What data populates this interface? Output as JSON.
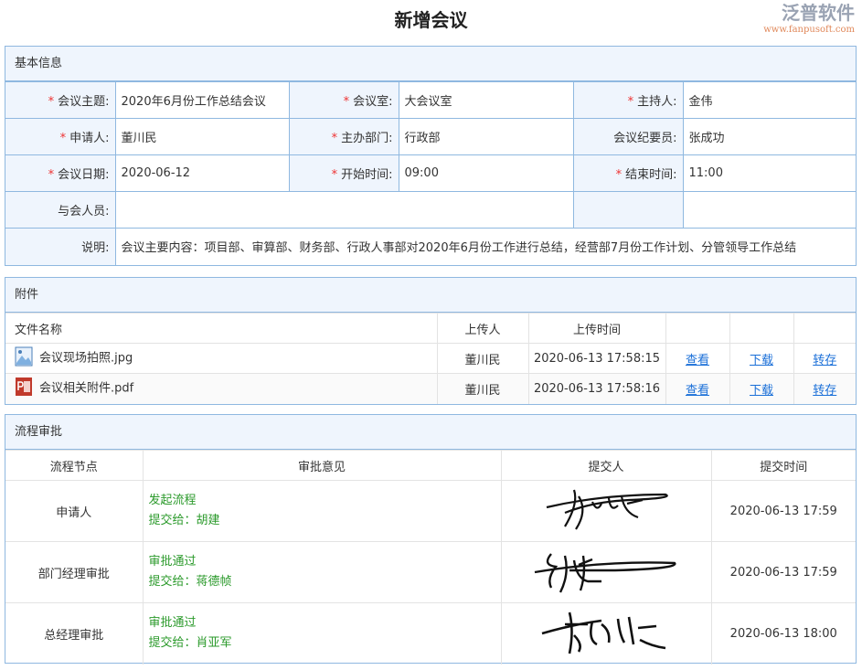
{
  "title": "新增会议",
  "basic": {
    "header": "基本信息",
    "rows": [
      [
        {
          "label": "会议主题:",
          "req": true,
          "value": "2020年6月份工作总结会议"
        },
        {
          "label": "会议室:",
          "req": true,
          "value": "大会议室"
        },
        {
          "label": "主持人:",
          "req": true,
          "value": "金伟"
        }
      ],
      [
        {
          "label": "申请人:",
          "req": true,
          "value": "董川民"
        },
        {
          "label": "主办部门:",
          "req": true,
          "value": "行政部"
        },
        {
          "label": "会议纪要员:",
          "req": false,
          "value": "张成功"
        }
      ],
      [
        {
          "label": "会议日期:",
          "req": true,
          "value": "2020-06-12"
        },
        {
          "label": "开始时间:",
          "req": true,
          "value": "09:00"
        },
        {
          "label": "结束时间:",
          "req": true,
          "value": "11:00"
        }
      ]
    ],
    "attendees_label": "与会人员:",
    "attendees": "",
    "desc_label": "说明:",
    "desc": "会议主要内容：项目部、审算部、财务部、行政人事部对2020年6月份工作进行总结，经营部7月份工作计划、分管领导工作总结"
  },
  "attachments": {
    "header": "附件",
    "cols": [
      "文件名称",
      "上传人",
      "上传时间"
    ],
    "files": [
      {
        "name": "会议现场拍照.jpg",
        "icon": "image-file-icon",
        "uploader": "董川民",
        "time": "2020-06-13 17:58:15"
      },
      {
        "name": "会议相关附件.pdf",
        "icon": "pdf-file-icon",
        "uploader": "董川民",
        "time": "2020-06-13 17:58:16"
      }
    ],
    "actions": {
      "view": "查看",
      "download": "下载",
      "save": "转存"
    }
  },
  "flow": {
    "header": "流程审批",
    "cols": [
      "流程节点",
      "审批意见",
      "提交人",
      "提交时间"
    ],
    "rows": [
      {
        "node": "申请人",
        "opinion": "发起流程",
        "to": "提交给：胡建",
        "time": "2020-06-13 17:59"
      },
      {
        "node": "部门经理审批",
        "opinion": "审批通过",
        "to": "提交给：蒋德帧",
        "time": "2020-06-13 17:59"
      },
      {
        "node": "总经理审批",
        "opinion": "审批通过",
        "to": "提交给：肖亚军",
        "time": "2020-06-13 18:00"
      }
    ]
  },
  "watermark": {
    "name": "泛普软件",
    "url": "www.fanpusoft.com"
  },
  "colors": {
    "border": "#8fb8e0",
    "header_bg": "#eff5fd",
    "required": "#e33333",
    "link": "#1a6fd8",
    "opinion": "#2b9a2b"
  }
}
